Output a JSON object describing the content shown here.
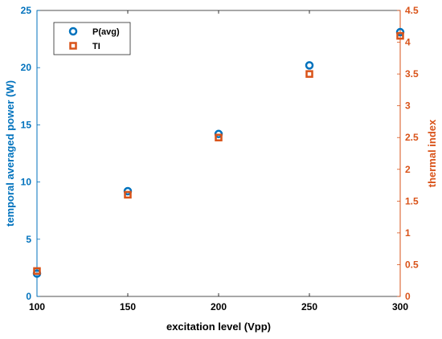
{
  "colors": {
    "left_axis": "#0072BD",
    "right_axis": "#D95319",
    "axis_black": "#000000"
  },
  "chart_data": {
    "type": "scatter",
    "xlabel": "excitation level (Vpp)",
    "ylabel_left": "temporal averaged power (W)",
    "ylabel_right": "thermal index",
    "xlim": [
      100,
      300
    ],
    "ylim_left": [
      0,
      25
    ],
    "ylim_right": [
      0,
      4.5
    ],
    "x_ticks": [
      "100",
      "150",
      "200",
      "250",
      "300"
    ],
    "y_left_ticks": [
      "0",
      "5",
      "10",
      "15",
      "20",
      "25"
    ],
    "y_right_ticks": [
      "0",
      "0.5",
      "1",
      "1.5",
      "2",
      "2.5",
      "3",
      "3.5",
      "4",
      "4.5"
    ],
    "grid": false,
    "legend_position": "top-left",
    "series": [
      {
        "name": "P(avg)",
        "axis": "left",
        "marker": "circle",
        "x": [
          100,
          150,
          200,
          250,
          300
        ],
        "y": [
          2.0,
          9.2,
          14.2,
          20.2,
          23.1
        ]
      },
      {
        "name": "TI",
        "axis": "right",
        "marker": "square",
        "x": [
          100,
          150,
          200,
          250,
          300
        ],
        "y": [
          0.4,
          1.6,
          2.5,
          3.5,
          4.1
        ]
      }
    ]
  }
}
